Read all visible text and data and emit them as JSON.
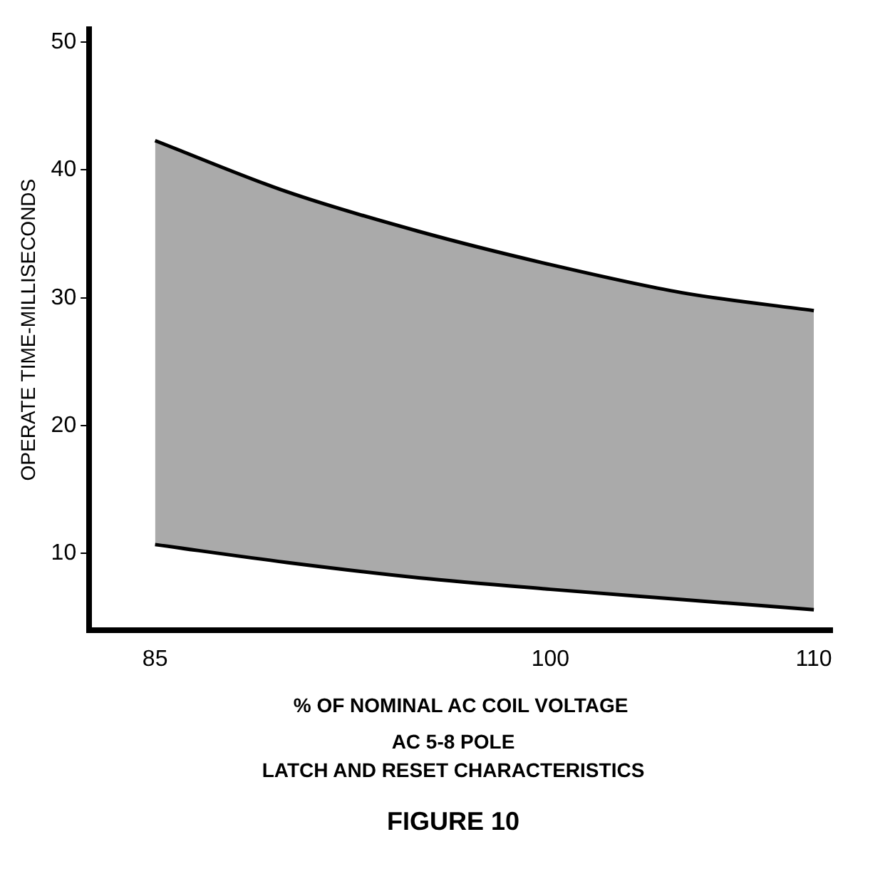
{
  "chart_data": {
    "type": "line",
    "x": [
      85,
      90,
      95,
      100,
      105,
      110
    ],
    "series": [
      {
        "color": "#000000",
        "values": [
          10.7,
          9.3,
          8.1,
          7.2,
          6.4,
          5.6
        ]
      },
      {
        "color": "#000000",
        "values": [
          42.3,
          38.3,
          35.2,
          32.6,
          30.4,
          29.0
        ],
        "lower": [
          10.7,
          9.3,
          8.1,
          7.2,
          6.4,
          5.6
        ],
        "upper": [
          42.3,
          38.3,
          35.2,
          32.6,
          30.4,
          29.0
        ]
      }
    ],
    "xlim": [
      82.5,
      110.7
    ],
    "xticks": [
      85,
      100,
      110
    ],
    "ylim": [
      4,
      51
    ],
    "yticks": [
      10,
      20,
      30,
      40,
      50
    ],
    "xlabel": "% OF NOMINAL AC COIL VOLTAGE",
    "ylabel": "OPERATE TIME-MILLISECONDS",
    "annotations": [
      "AC 5-8 POLE",
      "LATCH AND RESET CHARACTERISTICS",
      "FIGURE 10"
    ],
    "grid": false,
    "legend": false,
    "marker": "none",
    "line_style": "solid"
  }
}
